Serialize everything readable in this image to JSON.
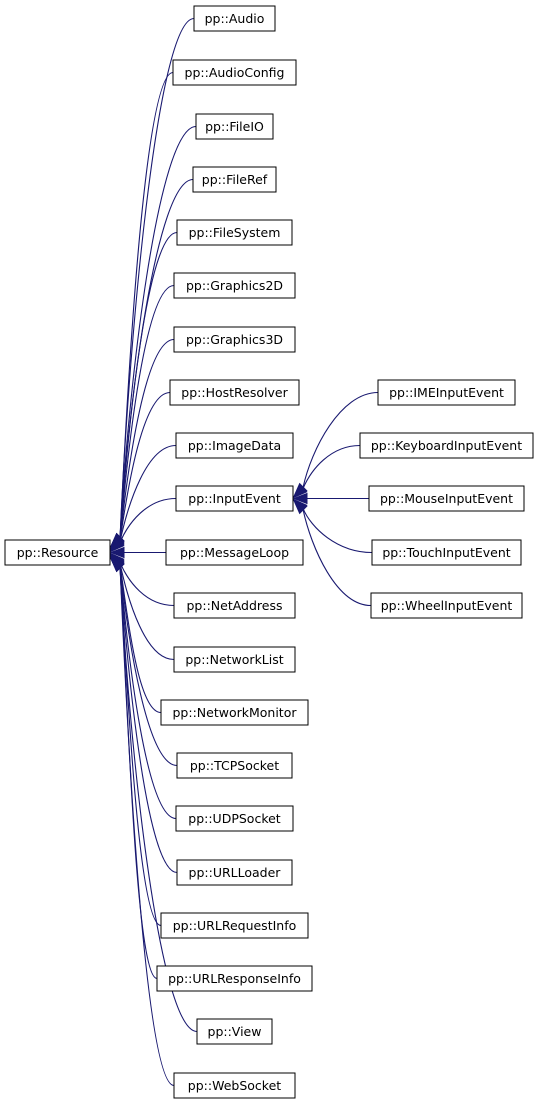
{
  "diagram": {
    "nodes": {
      "root": "pp::Resource",
      "audio": "pp::Audio",
      "audioconfig": "pp::AudioConfig",
      "fileio": "pp::FileIO",
      "fileref": "pp::FileRef",
      "filesystem": "pp::FileSystem",
      "graphics2d": "pp::Graphics2D",
      "graphics3d": "pp::Graphics3D",
      "hostresolver": "pp::HostResolver",
      "imagedata": "pp::ImageData",
      "inputevent": "pp::InputEvent",
      "messageloop": "pp::MessageLoop",
      "netaddress": "pp::NetAddress",
      "networklist": "pp::NetworkList",
      "networkmonitor": "pp::NetworkMonitor",
      "tcpsocket": "pp::TCPSocket",
      "udpsocket": "pp::UDPSocket",
      "urlloader": "pp::URLLoader",
      "urlrequestinfo": "pp::URLRequestInfo",
      "urlresponseinfo": "pp::URLResponseInfo",
      "view": "pp::View",
      "websocket": "pp::WebSocket",
      "imeinputevent": "pp::IMEInputEvent",
      "keyboardinputevent": "pp::KeyboardInputEvent",
      "mouseinputevent": "pp::MouseInputEvent",
      "touchinputevent": "pp::TouchInputEvent",
      "wheelinputevent": "pp::WheelInputEvent"
    },
    "edges": [
      [
        "audio",
        "root"
      ],
      [
        "audioconfig",
        "root"
      ],
      [
        "fileio",
        "root"
      ],
      [
        "fileref",
        "root"
      ],
      [
        "filesystem",
        "root"
      ],
      [
        "graphics2d",
        "root"
      ],
      [
        "graphics3d",
        "root"
      ],
      [
        "hostresolver",
        "root"
      ],
      [
        "imagedata",
        "root"
      ],
      [
        "inputevent",
        "root"
      ],
      [
        "messageloop",
        "root"
      ],
      [
        "netaddress",
        "root"
      ],
      [
        "networklist",
        "root"
      ],
      [
        "networkmonitor",
        "root"
      ],
      [
        "tcpsocket",
        "root"
      ],
      [
        "udpsocket",
        "root"
      ],
      [
        "urlloader",
        "root"
      ],
      [
        "urlrequestinfo",
        "root"
      ],
      [
        "urlresponseinfo",
        "root"
      ],
      [
        "view",
        "root"
      ],
      [
        "websocket",
        "root"
      ],
      [
        "imeinputevent",
        "inputevent"
      ],
      [
        "keyboardinputevent",
        "inputevent"
      ],
      [
        "mouseinputevent",
        "inputevent"
      ],
      [
        "touchinputevent",
        "inputevent"
      ],
      [
        "wheelinputevent",
        "inputevent"
      ]
    ]
  }
}
